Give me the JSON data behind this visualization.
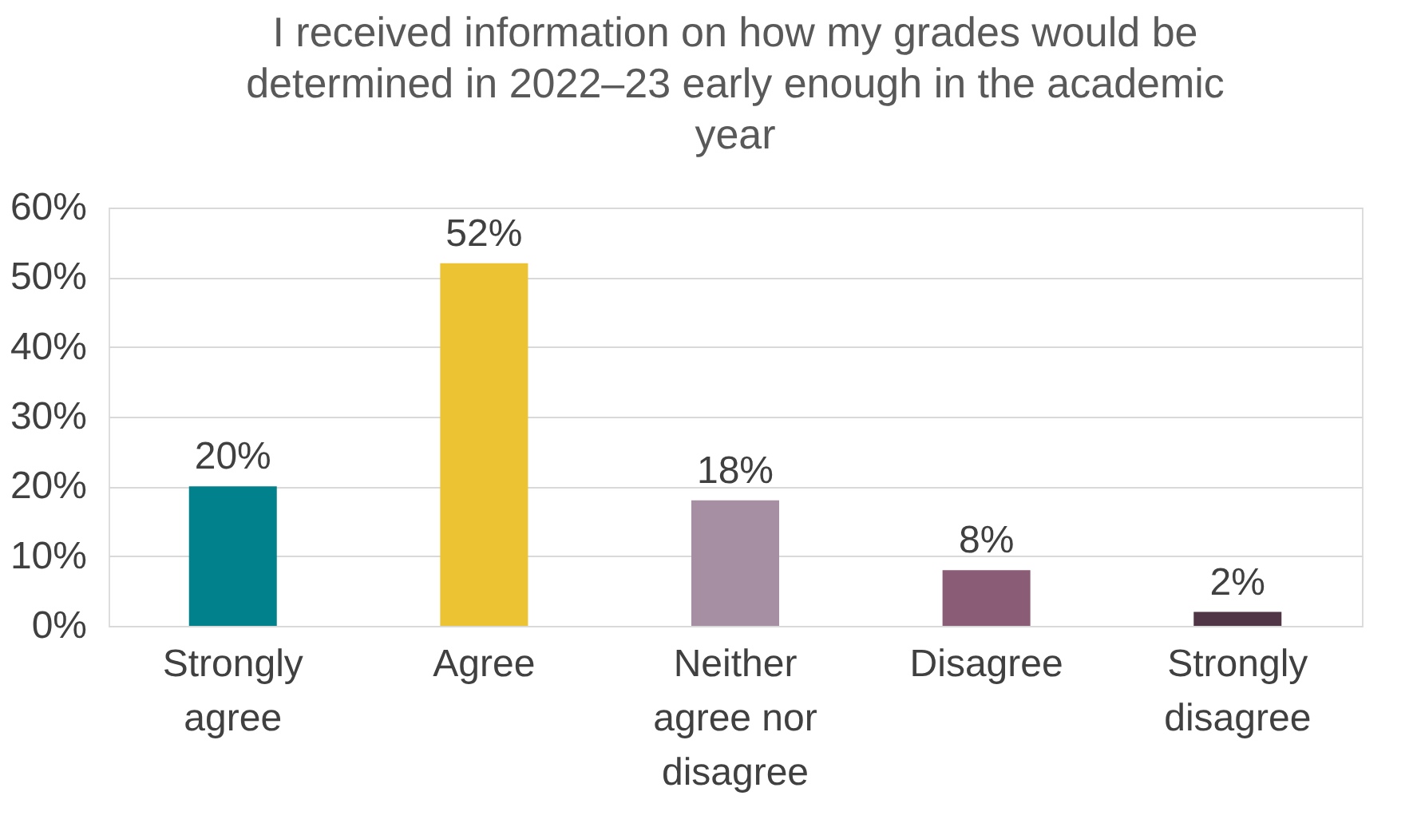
{
  "chart_data": {
    "type": "bar",
    "title": "I received information on how my grades would be determined in 2022–23 early enough in the academic year",
    "categories": [
      "Strongly agree",
      "Agree",
      "Neither agree nor disagree",
      "Disagree",
      "Strongly disagree"
    ],
    "values": [
      20,
      52,
      18,
      8,
      2
    ],
    "colors": [
      "#00818c",
      "#ecc332",
      "#a68ea3",
      "#8a5c75",
      "#4f3545"
    ],
    "value_labels": [
      "20%",
      "52%",
      "18%",
      "8%",
      "2%"
    ],
    "ylim": [
      0,
      60
    ],
    "yticks": [
      {
        "value": 0,
        "label": "0%"
      },
      {
        "value": 10,
        "label": "10%"
      },
      {
        "value": 20,
        "label": "20%"
      },
      {
        "value": 30,
        "label": "30%"
      },
      {
        "value": 40,
        "label": "40%"
      },
      {
        "value": 50,
        "label": "50%"
      },
      {
        "value": 60,
        "label": "60%"
      }
    ],
    "grid": "y"
  }
}
